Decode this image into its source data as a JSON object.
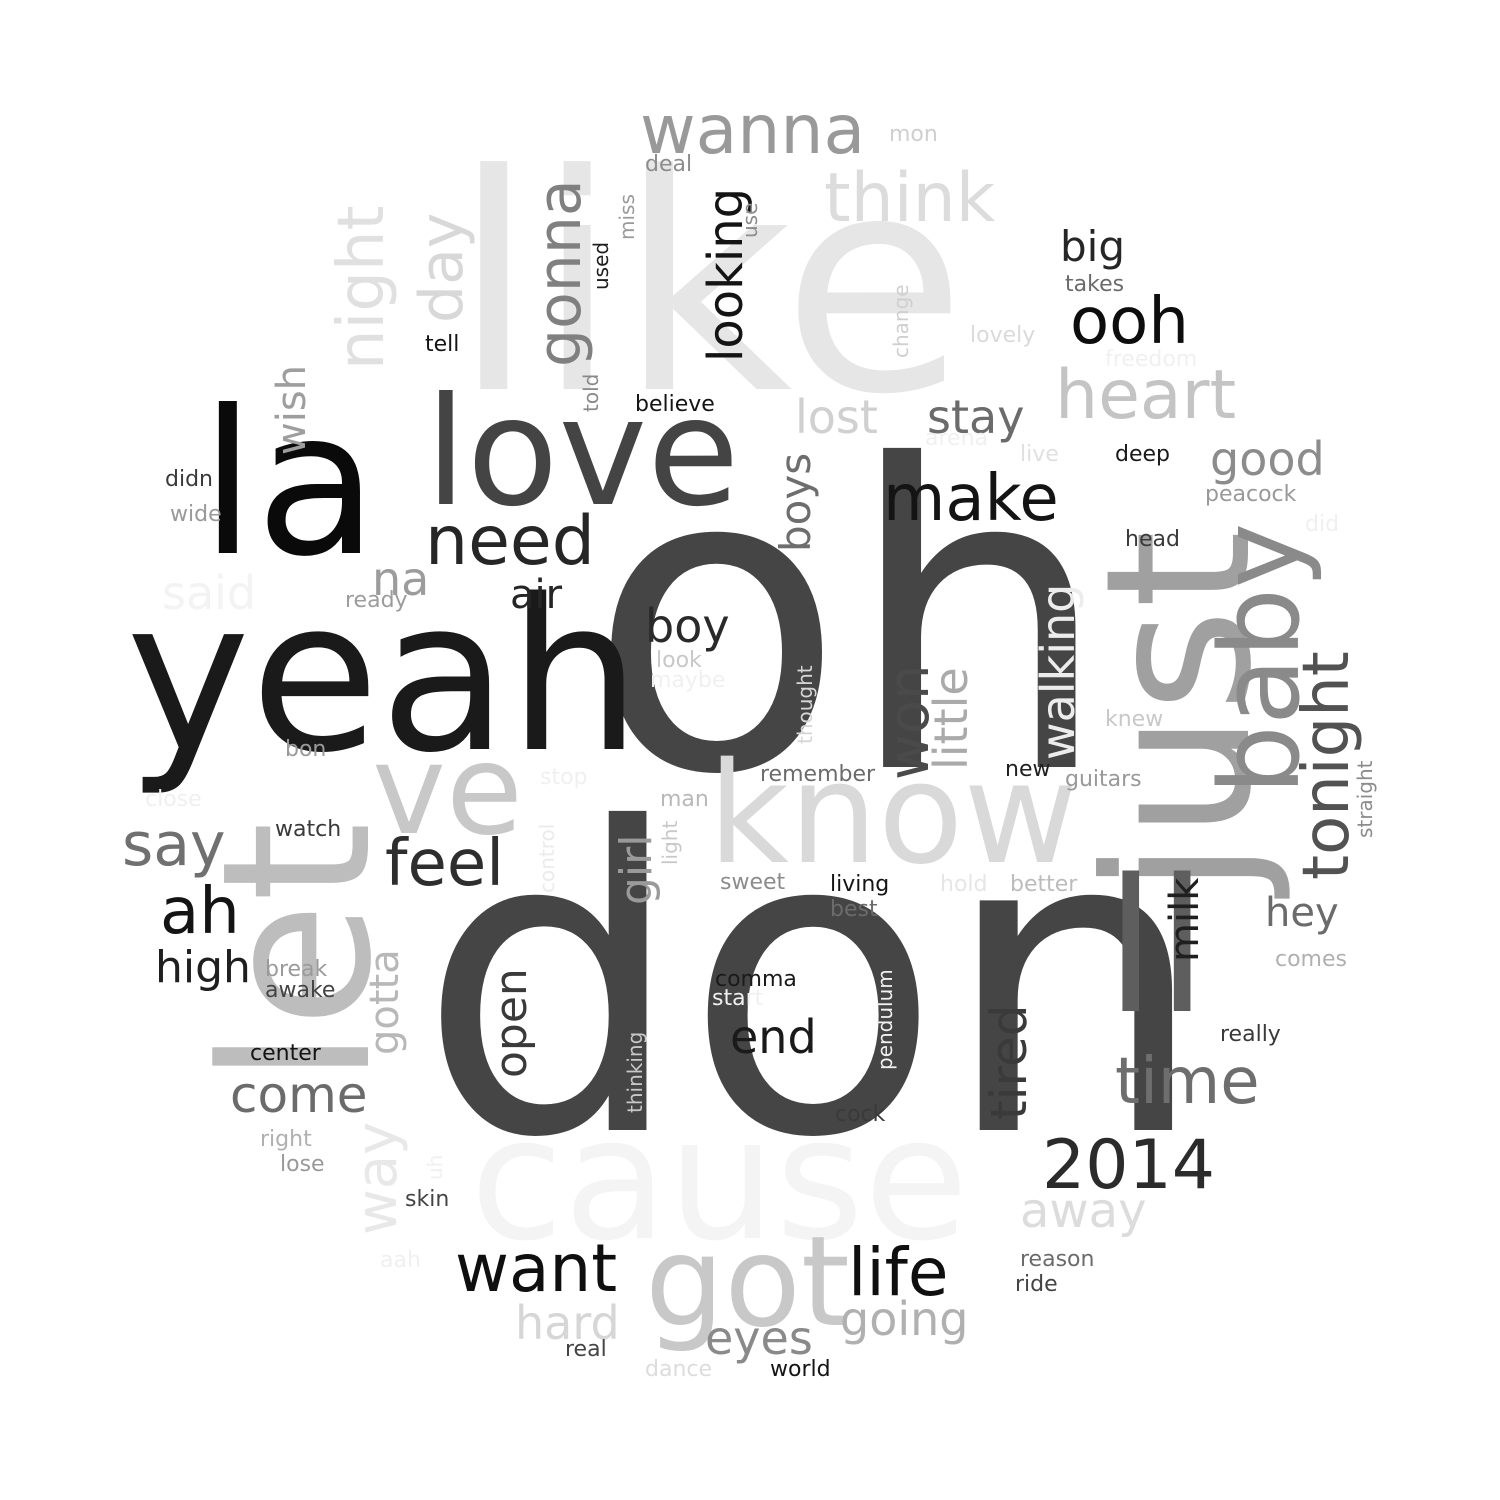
{
  "words": [
    {
      "text": "oh",
      "color": "#454545",
      "vertical": false
    },
    {
      "text": "don",
      "color": "#454545",
      "vertical": false
    },
    {
      "text": "like",
      "color": "#e6e6e6",
      "vertical": false
    },
    {
      "text": "yeah",
      "color": "#1a1a1a",
      "vertical": false
    },
    {
      "text": "la",
      "color": "#0a0a0a",
      "vertical": false
    },
    {
      "text": "let",
      "color": "#bdbdbd",
      "vertical": true
    },
    {
      "text": "cause",
      "color": "#f4f4f4",
      "vertical": false
    },
    {
      "text": "just",
      "color": "#a0a0a0",
      "vertical": true
    },
    {
      "text": "love",
      "color": "#444444",
      "vertical": false
    },
    {
      "text": "know",
      "color": "#d9d9d9",
      "vertical": false
    },
    {
      "text": "ve",
      "color": "#c8c8c8",
      "vertical": false
    },
    {
      "text": "ll",
      "color": "#5e5e5e",
      "vertical": false
    },
    {
      "text": "got",
      "color": "#c8c8c8",
      "vertical": false
    },
    {
      "text": "baby",
      "color": "#8a8a8a",
      "vertical": true
    },
    {
      "text": "wanna",
      "color": "#999999",
      "vertical": false
    },
    {
      "text": "think",
      "color": "#dcdcdc",
      "vertical": false
    },
    {
      "text": "gonna",
      "color": "#808080",
      "vertical": true
    },
    {
      "text": "day",
      "color": "#d8d8d8",
      "vertical": true
    },
    {
      "text": "night",
      "color": "#e0e0e0",
      "vertical": true
    },
    {
      "text": "looking",
      "color": "#141414",
      "vertical": true
    },
    {
      "text": "big",
      "color": "#262626",
      "vertical": false
    },
    {
      "text": "ooh",
      "color": "#0d0d0d",
      "vertical": false
    },
    {
      "text": "heart",
      "color": "#c4c4c4",
      "vertical": false
    },
    {
      "text": "wish",
      "color": "#9e9e9e",
      "vertical": true
    },
    {
      "text": "need",
      "color": "#262626",
      "vertical": false
    },
    {
      "text": "make",
      "color": "#141414",
      "vertical": false
    },
    {
      "text": "stay",
      "color": "#6b6b6b",
      "vertical": false
    },
    {
      "text": "lost",
      "color": "#d0d0d0",
      "vertical": false
    },
    {
      "text": "good",
      "color": "#8c8c8c",
      "vertical": false
    },
    {
      "text": "tonight",
      "color": "#525252",
      "vertical": true
    },
    {
      "text": "boys",
      "color": "#6e6e6e",
      "vertical": true
    },
    {
      "text": "won",
      "color": "#4a4a4a",
      "vertical": true
    },
    {
      "text": "little",
      "color": "#aaaaaa",
      "vertical": true
    },
    {
      "text": "walking",
      "color": "#ececec",
      "vertical": true
    },
    {
      "text": "na",
      "color": "#9c9c9c",
      "vertical": false
    },
    {
      "text": "air",
      "color": "#262626",
      "vertical": false
    },
    {
      "text": "boy",
      "color": "#2a2a2a",
      "vertical": false
    },
    {
      "text": "said",
      "color": "#f3f3f3",
      "vertical": false
    },
    {
      "text": "say",
      "color": "#707070",
      "vertical": false
    },
    {
      "text": "ah",
      "color": "#141414",
      "vertical": false
    },
    {
      "text": "feel",
      "color": "#2e2e2e",
      "vertical": false
    },
    {
      "text": "girl",
      "color": "#9a9a9a",
      "vertical": true
    },
    {
      "text": "milk",
      "color": "#1f1f1f",
      "vertical": true
    },
    {
      "text": "hey",
      "color": "#6b6b6b",
      "vertical": false
    },
    {
      "text": "high",
      "color": "#1f1f1f",
      "vertical": false
    },
    {
      "text": "gotta",
      "color": "#b8b8b8",
      "vertical": true
    },
    {
      "text": "open",
      "color": "#3a3a3a",
      "vertical": true
    },
    {
      "text": "end",
      "color": "#1a1a1a",
      "vertical": false
    },
    {
      "text": "tired",
      "color": "#3a3a3a",
      "vertical": true
    },
    {
      "text": "time",
      "color": "#6e6e6e",
      "vertical": false
    },
    {
      "text": "come",
      "color": "#6b6b6b",
      "vertical": false
    },
    {
      "text": "2014",
      "color": "#2b2b2b",
      "vertical": false
    },
    {
      "text": "way",
      "color": "#e8e8e8",
      "vertical": true
    },
    {
      "text": "away",
      "color": "#dcdcdc",
      "vertical": false
    },
    {
      "text": "want",
      "color": "#0f0f0f",
      "vertical": false
    },
    {
      "text": "life",
      "color": "#0f0f0f",
      "vertical": false
    },
    {
      "text": "going",
      "color": "#b0b0b0",
      "vertical": false
    },
    {
      "text": "hard",
      "color": "#d6d6d6",
      "vertical": false
    },
    {
      "text": "eyes",
      "color": "#8a8a8a",
      "vertical": false
    },
    {
      "text": "mon",
      "color": "#cfcfcf",
      "vertical": false
    },
    {
      "text": "deal",
      "color": "#8c8c8c",
      "vertical": false
    },
    {
      "text": "miss",
      "color": "#9a9a9a",
      "vertical": true
    },
    {
      "text": "use",
      "color": "#8c8c8c",
      "vertical": true
    },
    {
      "text": "used",
      "color": "#1f1f1f",
      "vertical": true
    },
    {
      "text": "takes",
      "color": "#6b6b6b",
      "vertical": false
    },
    {
      "text": "change",
      "color": "#cfcfcf",
      "vertical": true
    },
    {
      "text": "lovely",
      "color": "#dadada",
      "vertical": false
    },
    {
      "text": "freedom",
      "color": "#f0f0f0",
      "vertical": false
    },
    {
      "text": "tell",
      "color": "#141414",
      "vertical": false
    },
    {
      "text": "told",
      "color": "#8a8a8a",
      "vertical": true
    },
    {
      "text": "believe",
      "color": "#141414",
      "vertical": false
    },
    {
      "text": "arena",
      "color": "#f0f0f0",
      "vertical": false
    },
    {
      "text": "live",
      "color": "#e0e0e0",
      "vertical": false
    },
    {
      "text": "deep",
      "color": "#1a1a1a",
      "vertical": false
    },
    {
      "text": "peacock",
      "color": "#999999",
      "vertical": false
    },
    {
      "text": "did",
      "color": "#f0f0f0",
      "vertical": false
    },
    {
      "text": "head",
      "color": "#3a3a3a",
      "vertical": false
    },
    {
      "text": "didn",
      "color": "#3a3a3a",
      "vertical": false
    },
    {
      "text": "wide",
      "color": "#999999",
      "vertical": false
    },
    {
      "text": "ready",
      "color": "#9c9c9c",
      "vertical": false
    },
    {
      "text": "look",
      "color": "#c8c8c8",
      "vertical": false
    },
    {
      "text": "maybe",
      "color": "#f0f0f0",
      "vertical": false
    },
    {
      "text": "knew",
      "color": "#c8c8c8",
      "vertical": false
    },
    {
      "text": "thought",
      "color": "#d6d6d6",
      "vertical": true
    },
    {
      "text": "straight",
      "color": "#8c8c8c",
      "vertical": true
    },
    {
      "text": "bon",
      "color": "#9a9a9a",
      "vertical": false
    },
    {
      "text": "remember",
      "color": "#6b6b6b",
      "vertical": false
    },
    {
      "text": "new",
      "color": "#1f1f1f",
      "vertical": false
    },
    {
      "text": "guitars",
      "color": "#999999",
      "vertical": false
    },
    {
      "text": "close",
      "color": "#f0f0f0",
      "vertical": false
    },
    {
      "text": "stop",
      "color": "#f0f0f0",
      "vertical": false
    },
    {
      "text": "man",
      "color": "#b8b8b8",
      "vertical": false
    },
    {
      "text": "watch",
      "color": "#3a3a3a",
      "vertical": false
    },
    {
      "text": "control",
      "color": "#ebebeb",
      "vertical": true
    },
    {
      "text": "light",
      "color": "#c8c8c8",
      "vertical": true
    },
    {
      "text": "sweet",
      "color": "#8c8c8c",
      "vertical": false
    },
    {
      "text": "living",
      "color": "#141414",
      "vertical": false
    },
    {
      "text": "hold",
      "color": "#e6e6e6",
      "vertical": false
    },
    {
      "text": "better",
      "color": "#bcbcbc",
      "vertical": false
    },
    {
      "text": "best",
      "color": "#6b6b6b",
      "vertical": false
    },
    {
      "text": "comes",
      "color": "#b0b0b0",
      "vertical": false
    },
    {
      "text": "break",
      "color": "#9a9a9a",
      "vertical": false
    },
    {
      "text": "awake",
      "color": "#444444",
      "vertical": false
    },
    {
      "text": "comma",
      "color": "#1a1a1a",
      "vertical": false
    },
    {
      "text": "start",
      "color": "#f0f0f0",
      "vertical": false
    },
    {
      "text": "pendulum",
      "color": "#f0f0f0",
      "vertical": true
    },
    {
      "text": "thinking",
      "color": "#c8c8c8",
      "vertical": true
    },
    {
      "text": "really",
      "color": "#3a3a3a",
      "vertical": false
    },
    {
      "text": "center",
      "color": "#141414",
      "vertical": false
    },
    {
      "text": "cock",
      "color": "#3a3a3a",
      "vertical": false
    },
    {
      "text": "right",
      "color": "#b0b0b0",
      "vertical": false
    },
    {
      "text": "lose",
      "color": "#999999",
      "vertical": false
    },
    {
      "text": "uh",
      "color": "#f0f0f0",
      "vertical": true
    },
    {
      "text": "skin",
      "color": "#444444",
      "vertical": false
    },
    {
      "text": "reason",
      "color": "#6b6b6b",
      "vertical": false
    },
    {
      "text": "ride",
      "color": "#444444",
      "vertical": false
    },
    {
      "text": "aah",
      "color": "#f0f0f0",
      "vertical": false
    },
    {
      "text": "real",
      "color": "#444444",
      "vertical": false
    },
    {
      "text": "dance",
      "color": "#dcdcdc",
      "vertical": false
    },
    {
      "text": "world",
      "color": "#141414",
      "vertical": false
    }
  ]
}
